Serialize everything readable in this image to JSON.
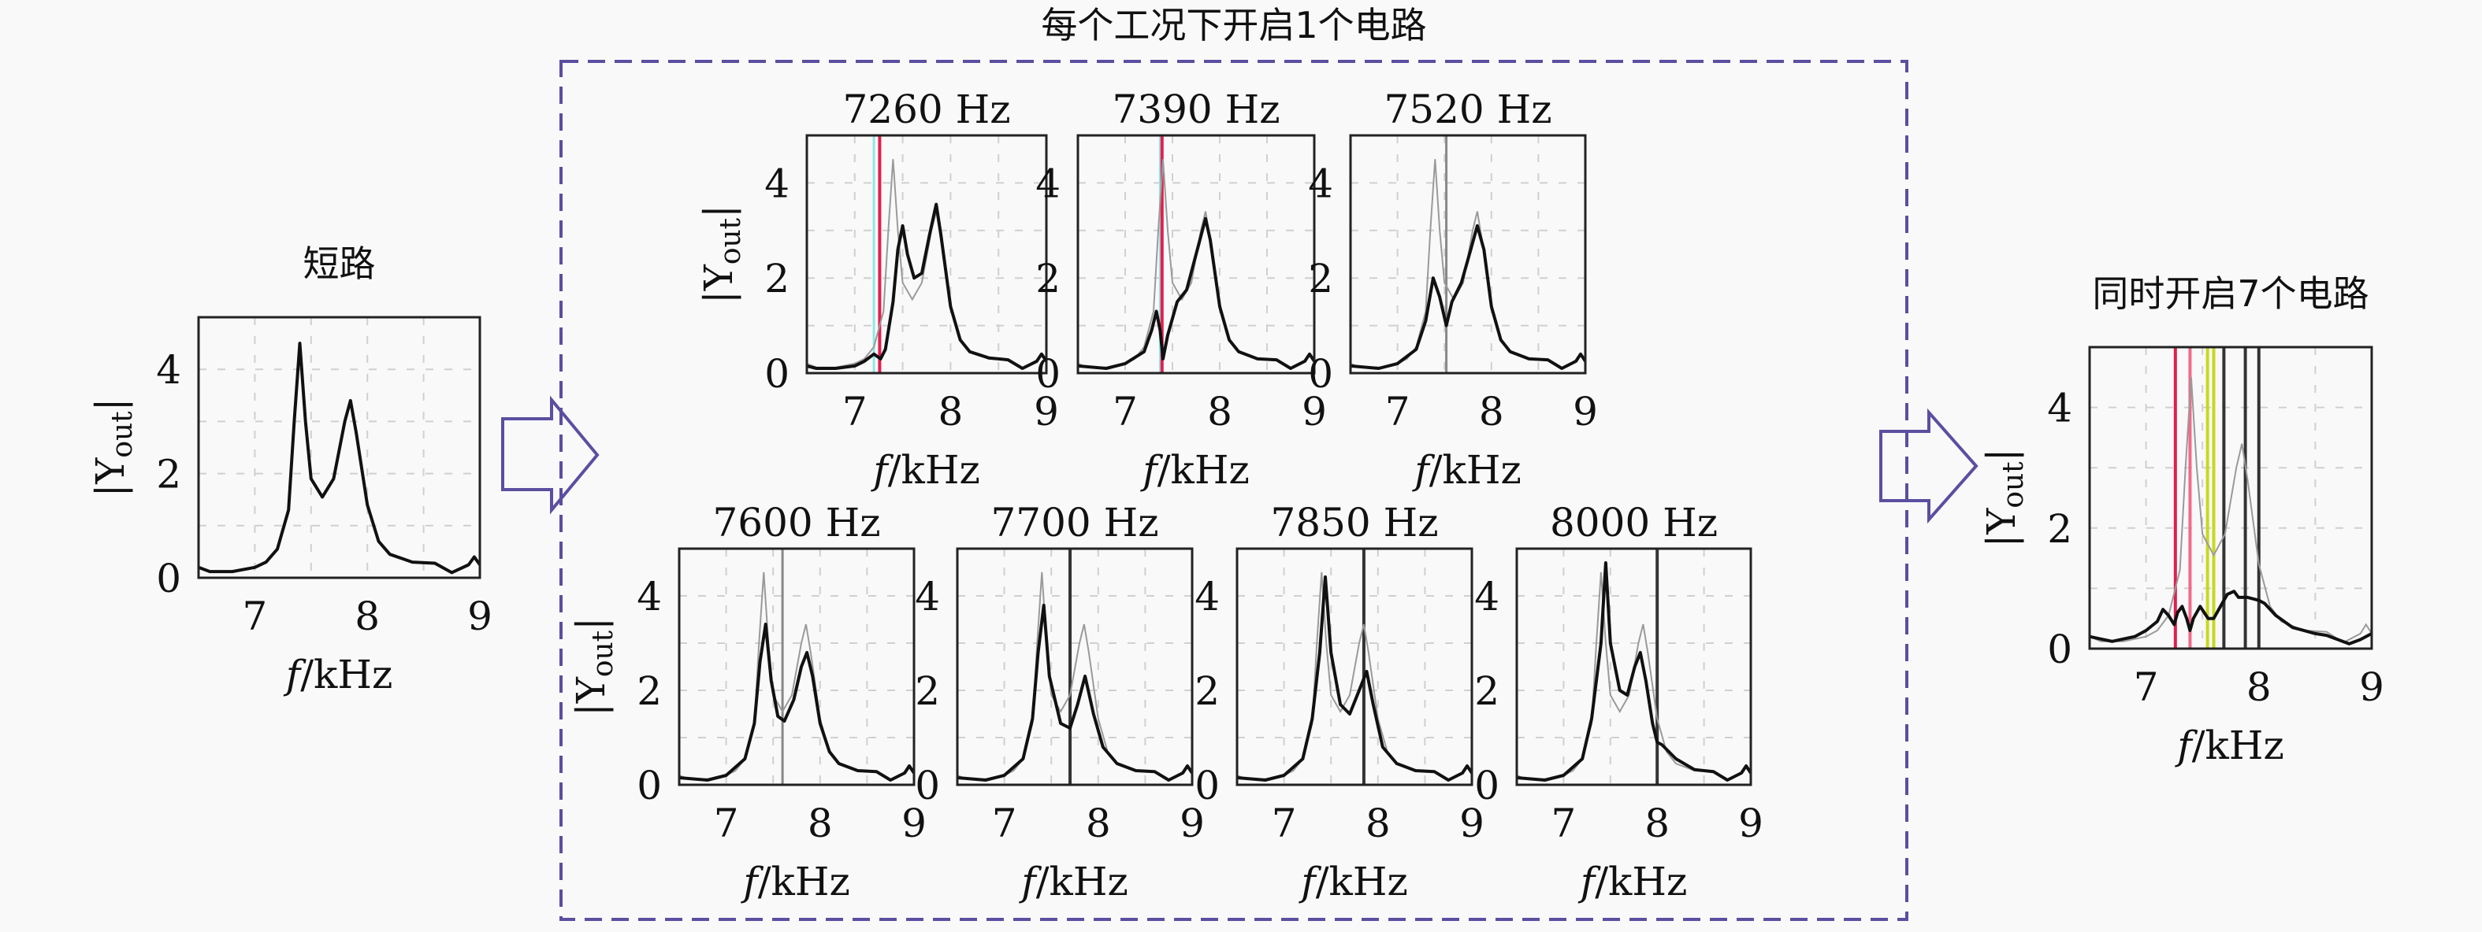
{
  "group_title": "每个工况下开启1个电路",
  "axis": {
    "xlabel_f": "f",
    "xlabel_unit": "/kHz",
    "ylabel_main": "|Y",
    "ylabel_sub": "out",
    "ylabel_end": "|",
    "xlim": [
      6.5,
      9
    ],
    "ylim": [
      0,
      5
    ],
    "xticks": [
      "7",
      "8",
      "9"
    ],
    "yticks": [
      "0",
      "2",
      "4"
    ]
  },
  "colors": {
    "frame": "#5a4fa0",
    "curve": "#111111",
    "reference": "#9a9a9a",
    "grid": "#d0d0d0",
    "red": "#e0204f",
    "pink": "#f06a8a",
    "cyan": "#8fe8e8",
    "yellow": "#c8d820",
    "dark": "#333333",
    "gray": "#888888"
  },
  "chart_data": [
    {
      "id": "short",
      "type": "line",
      "title": "短路",
      "reference": false,
      "series": [
        [
          6.5,
          0.2
        ],
        [
          6.6,
          0.12
        ],
        [
          6.8,
          0.12
        ],
        [
          7.0,
          0.2
        ],
        [
          7.1,
          0.3
        ],
        [
          7.2,
          0.55
        ],
        [
          7.3,
          1.3
        ],
        [
          7.35,
          3.0
        ],
        [
          7.4,
          4.5
        ],
        [
          7.45,
          3.0
        ],
        [
          7.5,
          1.9
        ],
        [
          7.6,
          1.55
        ],
        [
          7.7,
          1.9
        ],
        [
          7.8,
          3.0
        ],
        [
          7.85,
          3.4
        ],
        [
          7.9,
          2.8
        ],
        [
          8.0,
          1.4
        ],
        [
          8.1,
          0.7
        ],
        [
          8.2,
          0.45
        ],
        [
          8.4,
          0.3
        ],
        [
          8.6,
          0.28
        ],
        [
          8.75,
          0.1
        ],
        [
          8.9,
          0.25
        ],
        [
          8.95,
          0.4
        ],
        [
          9.0,
          0.25
        ]
      ],
      "vlines": []
    },
    {
      "id": "7260",
      "type": "line",
      "title": "7260 Hz",
      "reference": true,
      "series": [
        [
          6.5,
          0.15
        ],
        [
          6.6,
          0.1
        ],
        [
          6.8,
          0.1
        ],
        [
          7.0,
          0.15
        ],
        [
          7.1,
          0.25
        ],
        [
          7.2,
          0.4
        ],
        [
          7.27,
          0.3
        ],
        [
          7.32,
          0.5
        ],
        [
          7.4,
          1.5
        ],
        [
          7.45,
          2.6
        ],
        [
          7.5,
          3.1
        ],
        [
          7.55,
          2.5
        ],
        [
          7.62,
          2.0
        ],
        [
          7.7,
          2.1
        ],
        [
          7.78,
          2.9
        ],
        [
          7.85,
          3.55
        ],
        [
          7.9,
          2.9
        ],
        [
          8.0,
          1.4
        ],
        [
          8.1,
          0.7
        ],
        [
          8.2,
          0.45
        ],
        [
          8.4,
          0.32
        ],
        [
          8.6,
          0.28
        ],
        [
          8.75,
          0.1
        ],
        [
          8.9,
          0.25
        ],
        [
          8.95,
          0.4
        ],
        [
          9.0,
          0.25
        ]
      ],
      "vlines": [
        {
          "x": 7.2,
          "color": "cyan"
        },
        {
          "x": 7.26,
          "color": "red"
        }
      ]
    },
    {
      "id": "7390",
      "type": "line",
      "title": "7390 Hz",
      "reference": true,
      "series": [
        [
          6.5,
          0.15
        ],
        [
          6.8,
          0.1
        ],
        [
          7.0,
          0.2
        ],
        [
          7.2,
          0.45
        ],
        [
          7.28,
          0.9
        ],
        [
          7.33,
          1.3
        ],
        [
          7.37,
          0.9
        ],
        [
          7.4,
          0.3
        ],
        [
          7.45,
          0.8
        ],
        [
          7.55,
          1.5
        ],
        [
          7.65,
          1.75
        ],
        [
          7.75,
          2.5
        ],
        [
          7.85,
          3.25
        ],
        [
          7.9,
          2.8
        ],
        [
          8.0,
          1.4
        ],
        [
          8.1,
          0.7
        ],
        [
          8.2,
          0.45
        ],
        [
          8.4,
          0.3
        ],
        [
          8.6,
          0.28
        ],
        [
          8.75,
          0.1
        ],
        [
          8.9,
          0.25
        ],
        [
          8.95,
          0.4
        ],
        [
          9.0,
          0.25
        ]
      ],
      "vlines": [
        {
          "x": 7.37,
          "color": "cyan"
        },
        {
          "x": 7.39,
          "color": "red"
        }
      ]
    },
    {
      "id": "7520",
      "type": "line",
      "title": "7520 Hz",
      "reference": true,
      "series": [
        [
          6.5,
          0.15
        ],
        [
          6.8,
          0.1
        ],
        [
          7.0,
          0.2
        ],
        [
          7.2,
          0.5
        ],
        [
          7.3,
          1.1
        ],
        [
          7.38,
          2.0
        ],
        [
          7.45,
          1.6
        ],
        [
          7.52,
          1.0
        ],
        [
          7.58,
          1.5
        ],
        [
          7.68,
          1.9
        ],
        [
          7.78,
          2.6
        ],
        [
          7.85,
          3.1
        ],
        [
          7.92,
          2.6
        ],
        [
          8.0,
          1.4
        ],
        [
          8.1,
          0.7
        ],
        [
          8.2,
          0.45
        ],
        [
          8.4,
          0.3
        ],
        [
          8.6,
          0.28
        ],
        [
          8.75,
          0.1
        ],
        [
          8.9,
          0.25
        ],
        [
          8.95,
          0.4
        ],
        [
          9.0,
          0.25
        ]
      ],
      "vlines": [
        {
          "x": 7.52,
          "color": "gray"
        }
      ]
    },
    {
      "id": "7600",
      "type": "line",
      "title": "7600 Hz",
      "reference": true,
      "series": [
        [
          6.5,
          0.15
        ],
        [
          6.8,
          0.1
        ],
        [
          7.0,
          0.2
        ],
        [
          7.2,
          0.55
        ],
        [
          7.3,
          1.3
        ],
        [
          7.36,
          2.6
        ],
        [
          7.42,
          3.4
        ],
        [
          7.48,
          2.2
        ],
        [
          7.55,
          1.45
        ],
        [
          7.62,
          1.35
        ],
        [
          7.72,
          1.8
        ],
        [
          7.8,
          2.5
        ],
        [
          7.86,
          2.8
        ],
        [
          7.92,
          2.3
        ],
        [
          8.0,
          1.3
        ],
        [
          8.1,
          0.7
        ],
        [
          8.2,
          0.45
        ],
        [
          8.4,
          0.3
        ],
        [
          8.6,
          0.28
        ],
        [
          8.75,
          0.1
        ],
        [
          8.9,
          0.25
        ],
        [
          8.95,
          0.4
        ],
        [
          9.0,
          0.25
        ]
      ],
      "vlines": [
        {
          "x": 7.6,
          "color": "gray"
        }
      ]
    },
    {
      "id": "7700",
      "type": "line",
      "title": "7700 Hz",
      "reference": true,
      "series": [
        [
          6.5,
          0.15
        ],
        [
          6.8,
          0.1
        ],
        [
          7.0,
          0.2
        ],
        [
          7.2,
          0.55
        ],
        [
          7.3,
          1.4
        ],
        [
          7.36,
          2.8
        ],
        [
          7.42,
          3.8
        ],
        [
          7.48,
          2.3
        ],
        [
          7.6,
          1.3
        ],
        [
          7.7,
          1.2
        ],
        [
          7.78,
          1.7
        ],
        [
          7.86,
          2.3
        ],
        [
          7.95,
          1.5
        ],
        [
          8.05,
          0.8
        ],
        [
          8.2,
          0.45
        ],
        [
          8.4,
          0.3
        ],
        [
          8.6,
          0.28
        ],
        [
          8.75,
          0.1
        ],
        [
          8.9,
          0.25
        ],
        [
          8.95,
          0.4
        ],
        [
          9.0,
          0.25
        ]
      ],
      "vlines": [
        {
          "x": 7.7,
          "color": "dark"
        }
      ]
    },
    {
      "id": "7850",
      "type": "line",
      "title": "7850 Hz",
      "reference": true,
      "series": [
        [
          6.5,
          0.15
        ],
        [
          6.8,
          0.1
        ],
        [
          7.0,
          0.2
        ],
        [
          7.2,
          0.55
        ],
        [
          7.3,
          1.4
        ],
        [
          7.38,
          2.8
        ],
        [
          7.44,
          4.4
        ],
        [
          7.5,
          2.8
        ],
        [
          7.6,
          1.7
        ],
        [
          7.7,
          1.5
        ],
        [
          7.8,
          2.0
        ],
        [
          7.88,
          2.4
        ],
        [
          7.95,
          1.7
        ],
        [
          8.05,
          0.8
        ],
        [
          8.2,
          0.45
        ],
        [
          8.4,
          0.3
        ],
        [
          8.6,
          0.28
        ],
        [
          8.75,
          0.1
        ],
        [
          8.9,
          0.25
        ],
        [
          8.95,
          0.4
        ],
        [
          9.0,
          0.25
        ]
      ],
      "vlines": [
        {
          "x": 7.85,
          "color": "dark"
        }
      ]
    },
    {
      "id": "8000",
      "type": "line",
      "title": "8000 Hz",
      "reference": true,
      "series": [
        [
          6.5,
          0.15
        ],
        [
          6.8,
          0.1
        ],
        [
          7.0,
          0.2
        ],
        [
          7.2,
          0.55
        ],
        [
          7.3,
          1.4
        ],
        [
          7.4,
          3.0
        ],
        [
          7.45,
          4.7
        ],
        [
          7.5,
          3.0
        ],
        [
          7.6,
          2.0
        ],
        [
          7.68,
          1.9
        ],
        [
          7.76,
          2.5
        ],
        [
          7.82,
          2.8
        ],
        [
          7.88,
          2.2
        ],
        [
          7.95,
          1.3
        ],
        [
          8.0,
          0.9
        ],
        [
          8.05,
          0.85
        ],
        [
          8.2,
          0.55
        ],
        [
          8.4,
          0.32
        ],
        [
          8.6,
          0.28
        ],
        [
          8.75,
          0.1
        ],
        [
          8.9,
          0.25
        ],
        [
          8.95,
          0.4
        ],
        [
          9.0,
          0.25
        ]
      ],
      "vlines": [
        {
          "x": 8.0,
          "color": "dark"
        }
      ]
    },
    {
      "id": "all",
      "type": "line",
      "title": "同时开启7个电路",
      "reference": true,
      "series": [
        [
          6.5,
          0.2
        ],
        [
          6.7,
          0.12
        ],
        [
          6.9,
          0.2
        ],
        [
          7.0,
          0.3
        ],
        [
          7.1,
          0.45
        ],
        [
          7.15,
          0.65
        ],
        [
          7.2,
          0.55
        ],
        [
          7.25,
          0.4
        ],
        [
          7.28,
          0.6
        ],
        [
          7.32,
          0.7
        ],
        [
          7.36,
          0.5
        ],
        [
          7.39,
          0.3
        ],
        [
          7.42,
          0.5
        ],
        [
          7.48,
          0.7
        ],
        [
          7.55,
          0.5
        ],
        [
          7.6,
          0.5
        ],
        [
          7.66,
          0.7
        ],
        [
          7.72,
          0.9
        ],
        [
          7.78,
          0.95
        ],
        [
          7.82,
          0.85
        ],
        [
          7.9,
          0.85
        ],
        [
          8.0,
          0.8
        ],
        [
          8.05,
          0.75
        ],
        [
          8.15,
          0.55
        ],
        [
          8.3,
          0.35
        ],
        [
          8.5,
          0.25
        ],
        [
          8.6,
          0.22
        ],
        [
          8.8,
          0.08
        ],
        [
          8.9,
          0.15
        ],
        [
          9.0,
          0.25
        ]
      ],
      "vlines": [
        {
          "x": 7.26,
          "color": "red"
        },
        {
          "x": 7.39,
          "color": "pink"
        },
        {
          "x": 7.545,
          "color": "yellow"
        },
        {
          "x": 7.6,
          "color": "yellow"
        },
        {
          "x": 7.69,
          "color": "dark"
        },
        {
          "x": 7.88,
          "color": "dark"
        },
        {
          "x": 8.0,
          "color": "dark"
        }
      ]
    }
  ]
}
